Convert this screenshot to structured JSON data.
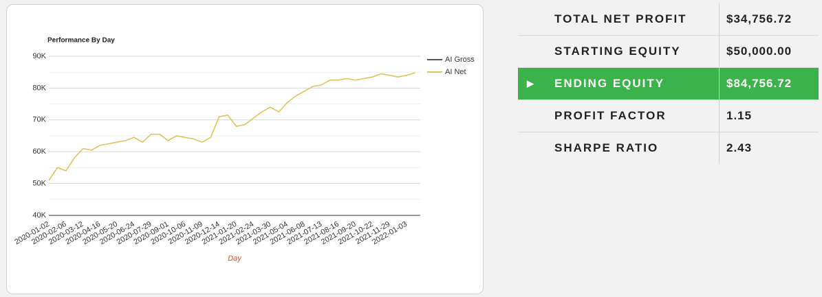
{
  "chart_data": {
    "type": "line",
    "title": "Performance By Day",
    "x_label": "Day",
    "categories": [
      "2020-01-02",
      null,
      "2020-02-06",
      null,
      "2020-03-12",
      null,
      "2020-04-16",
      null,
      "2020-05-20",
      null,
      "2020-06-24",
      null,
      "2020-07-29",
      null,
      "2020-09-01",
      null,
      "2020-10-06",
      null,
      "2020-11-09",
      null,
      "2020-12-14",
      null,
      "2021-01-20",
      null,
      "2021-02-24",
      null,
      "2021-03-30",
      null,
      "2021-05-04",
      null,
      "2021-06-08",
      null,
      "2021-07-13",
      null,
      "2021-08-16",
      null,
      "2021-09-20",
      null,
      "2021-10-22",
      null,
      "2021-11-29",
      null,
      "2022-01-03",
      null
    ],
    "series": [
      {
        "name": "AI Gross",
        "color": "#555555",
        "values": [
          null,
          null,
          null,
          null,
          null,
          null,
          null,
          null,
          null,
          null,
          null,
          null,
          null,
          null,
          null,
          null,
          null,
          null,
          null,
          null,
          null,
          null,
          null,
          null,
          null,
          null,
          null,
          null,
          null,
          null,
          null,
          null,
          null,
          null,
          null,
          null,
          null,
          null,
          null,
          null,
          null,
          null,
          null,
          null
        ]
      },
      {
        "name": "AI Net",
        "color": "#e0c35a",
        "values": [
          51000,
          55000,
          54000,
          58000,
          61000,
          60500,
          62000,
          62500,
          63000,
          63500,
          64500,
          63000,
          65500,
          65500,
          63500,
          65000,
          64500,
          64000,
          63000,
          64500,
          71000,
          71500,
          68000,
          68500,
          70500,
          72500,
          74000,
          72500,
          75500,
          77500,
          79000,
          80500,
          81000,
          82500,
          82500,
          83000,
          82500,
          83000,
          83500,
          84500,
          84000,
          83500,
          84000,
          84800
        ]
      }
    ],
    "ylim": [
      40000,
      90000
    ],
    "yticks": [
      {
        "value": 40000,
        "label": "40K"
      },
      {
        "value": 50000,
        "label": "50K"
      },
      {
        "value": 60000,
        "label": "60K"
      },
      {
        "value": 70000,
        "label": "70K"
      },
      {
        "value": 80000,
        "label": "80K"
      },
      {
        "value": 90000,
        "label": "90K"
      }
    ],
    "minor_yticks": [
      45000,
      55000,
      65000,
      75000,
      85000
    ],
    "grid": true,
    "legend": "right"
  },
  "stats": {
    "highlight_row": 2,
    "rows": [
      [
        "TOTAL NET PROFIT",
        "$34,756.72"
      ],
      [
        "STARTING EQUITY",
        "$50,000.00"
      ],
      [
        "ENDING EQUITY",
        "$84,756.72"
      ],
      [
        "PROFIT FACTOR",
        "1.15"
      ],
      [
        "SHARPE RATIO",
        "2.43"
      ]
    ]
  }
}
